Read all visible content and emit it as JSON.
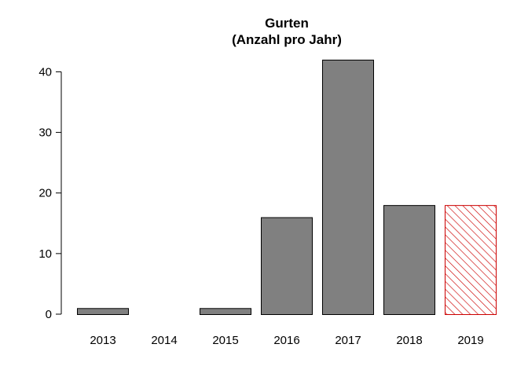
{
  "chart_data": {
    "type": "bar",
    "title": "Gurten",
    "subtitle": "(Anzahl pro Jahr)",
    "categories": [
      "2013",
      "2014",
      "2015",
      "2016",
      "2017",
      "2018",
      "2019"
    ],
    "values": [
      1,
      0,
      1,
      16,
      42,
      18,
      18
    ],
    "ylim": [
      0,
      42
    ],
    "yticks": [
      0,
      10,
      20,
      30,
      40
    ],
    "xlabel": "",
    "ylabel": "",
    "grid": false,
    "legend": "none",
    "colors": {
      "bar_fill": "#808080",
      "bar_stroke": "#000000",
      "highlight_hatch": "#cc0000"
    },
    "highlighted_category": "2019"
  }
}
